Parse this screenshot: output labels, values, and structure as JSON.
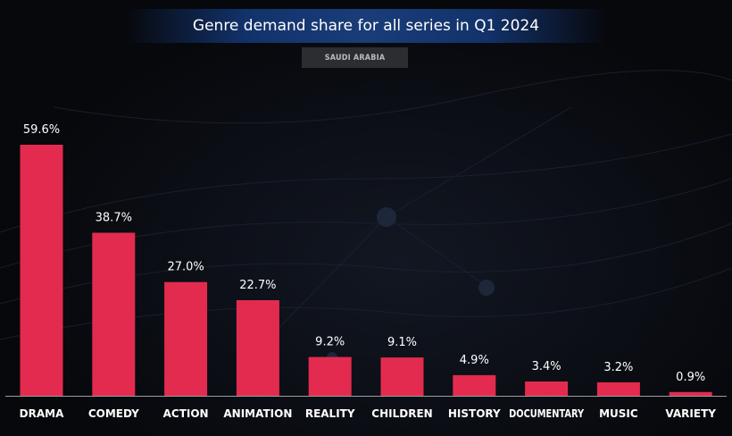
{
  "header": {
    "title": "Genre demand share for all series in Q1 2024",
    "region": "SAUDI ARABIA"
  },
  "colors": {
    "bar": "#e32b4f",
    "background": "#07080c",
    "title_bar": "#1a3d78"
  },
  "chart_data": {
    "type": "bar",
    "title": "Genre demand share for all series in Q1 2024",
    "subtitle": "SAUDI ARABIA",
    "categories": [
      "DRAMA",
      "COMEDY",
      "ACTION",
      "ANIMATION",
      "REALITY",
      "CHILDREN",
      "HISTORY",
      "DOCUMENTARY",
      "MUSIC",
      "VARIETY"
    ],
    "values": [
      59.6,
      38.7,
      27.0,
      22.7,
      9.2,
      9.1,
      4.9,
      3.4,
      3.2,
      0.9
    ],
    "value_labels": [
      "59.6%",
      "38.7%",
      "27.0%",
      "22.7%",
      "9.2%",
      "9.1%",
      "4.9%",
      "3.4%",
      "3.2%",
      "0.9%"
    ],
    "unit": "%",
    "grid": false,
    "legend": "none"
  }
}
